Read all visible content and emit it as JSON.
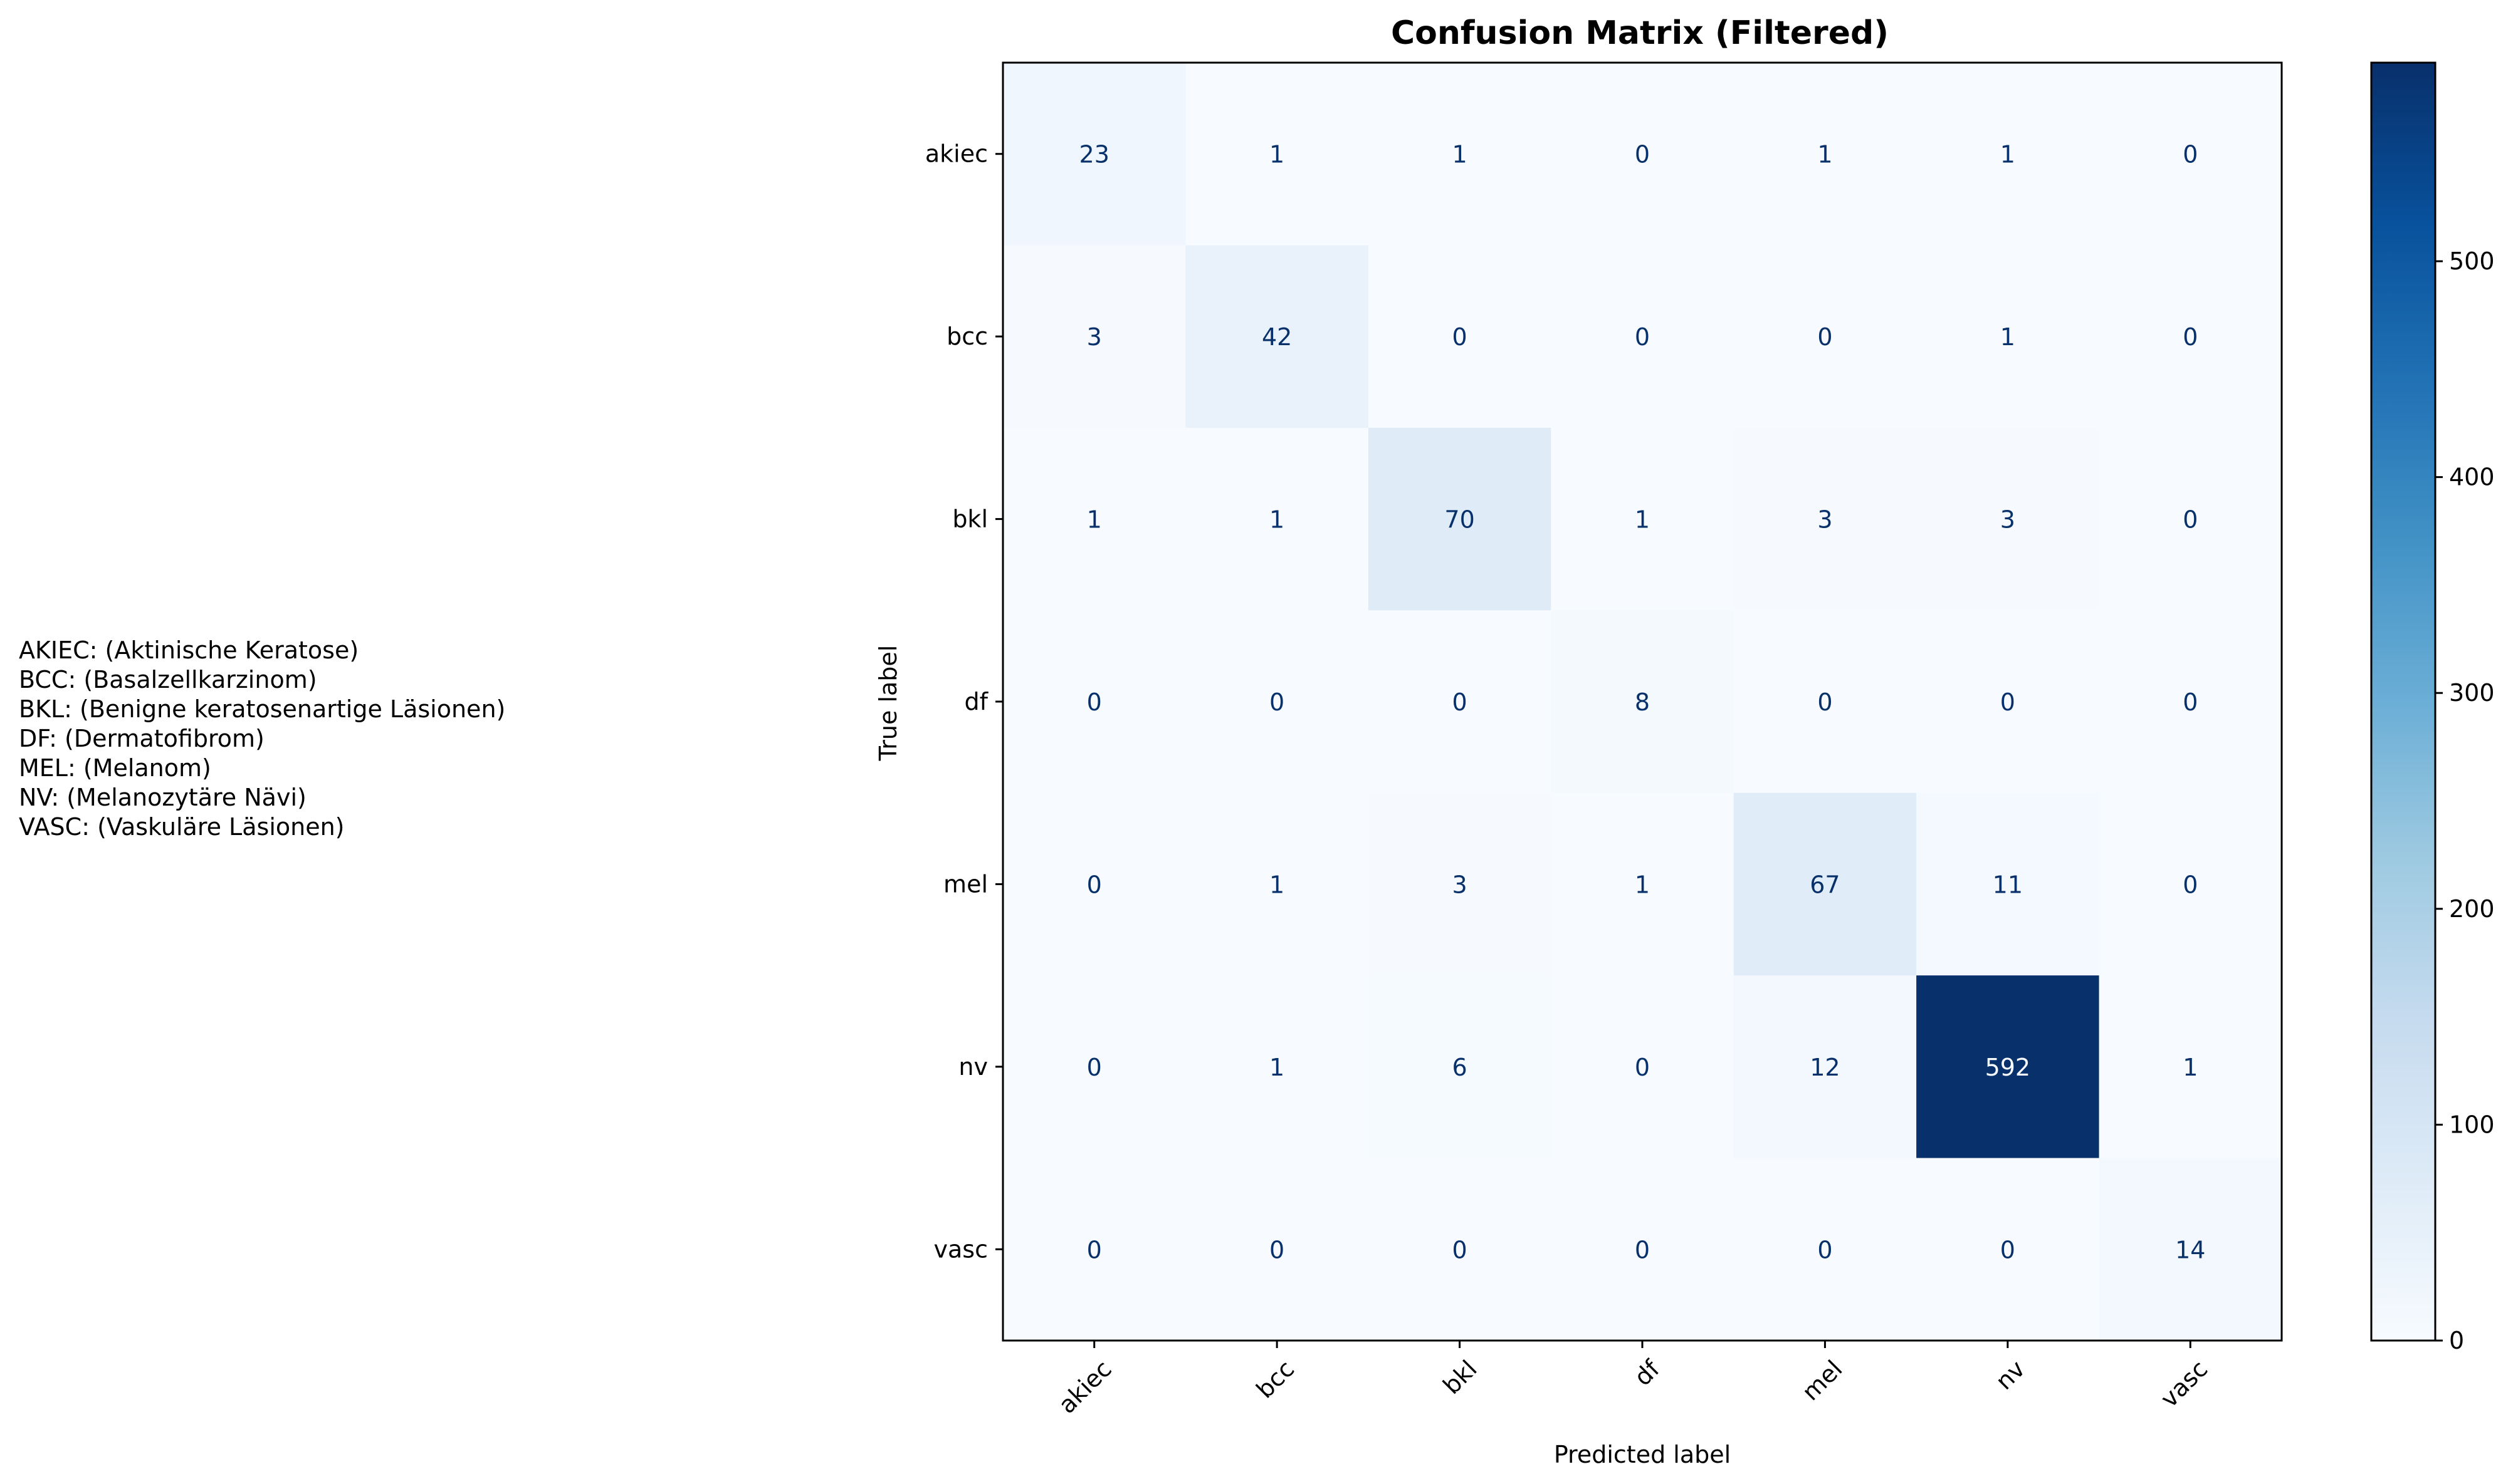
{
  "figure": {
    "legend_lines": [
      "AKIEC: (Aktinische Keratose)",
      "BCC: (Basalzellkarzinom)",
      "BKL: (Benigne keratosenartige Läsionen)",
      "DF: (Dermatofibrom)",
      "MEL: (Melanom)",
      "NV: (Melanozytäre Nävi)",
      "VASC: (Vaskuläre Läsionen)"
    ]
  },
  "chart_data": {
    "type": "heatmap",
    "title": "Confusion Matrix (Filtered)",
    "xlabel": "Predicted label",
    "ylabel": "True label",
    "x_categories": [
      "akiec",
      "bcc",
      "bkl",
      "df",
      "mel",
      "nv",
      "vasc"
    ],
    "y_categories": [
      "akiec",
      "bcc",
      "bkl",
      "df",
      "mel",
      "nv",
      "vasc"
    ],
    "values": [
      [
        23,
        1,
        1,
        0,
        1,
        1,
        0
      ],
      [
        3,
        42,
        0,
        0,
        0,
        1,
        0
      ],
      [
        1,
        1,
        70,
        1,
        3,
        3,
        0
      ],
      [
        0,
        0,
        0,
        8,
        0,
        0,
        0
      ],
      [
        0,
        1,
        3,
        1,
        67,
        11,
        0
      ],
      [
        0,
        1,
        6,
        0,
        12,
        592,
        1
      ],
      [
        0,
        0,
        0,
        0,
        0,
        0,
        14
      ]
    ],
    "colormap": "Blues",
    "color_range": [
      0,
      592
    ],
    "colorbar_ticks": [
      0,
      100,
      200,
      300,
      400,
      500
    ],
    "x_tick_rotation_deg": 45,
    "grid": false,
    "colors": {
      "cell_low": "#f7fbff",
      "cell_high": "#08306b",
      "text_on_light": "#08306b",
      "text_on_dark": "#f7fbff"
    }
  }
}
